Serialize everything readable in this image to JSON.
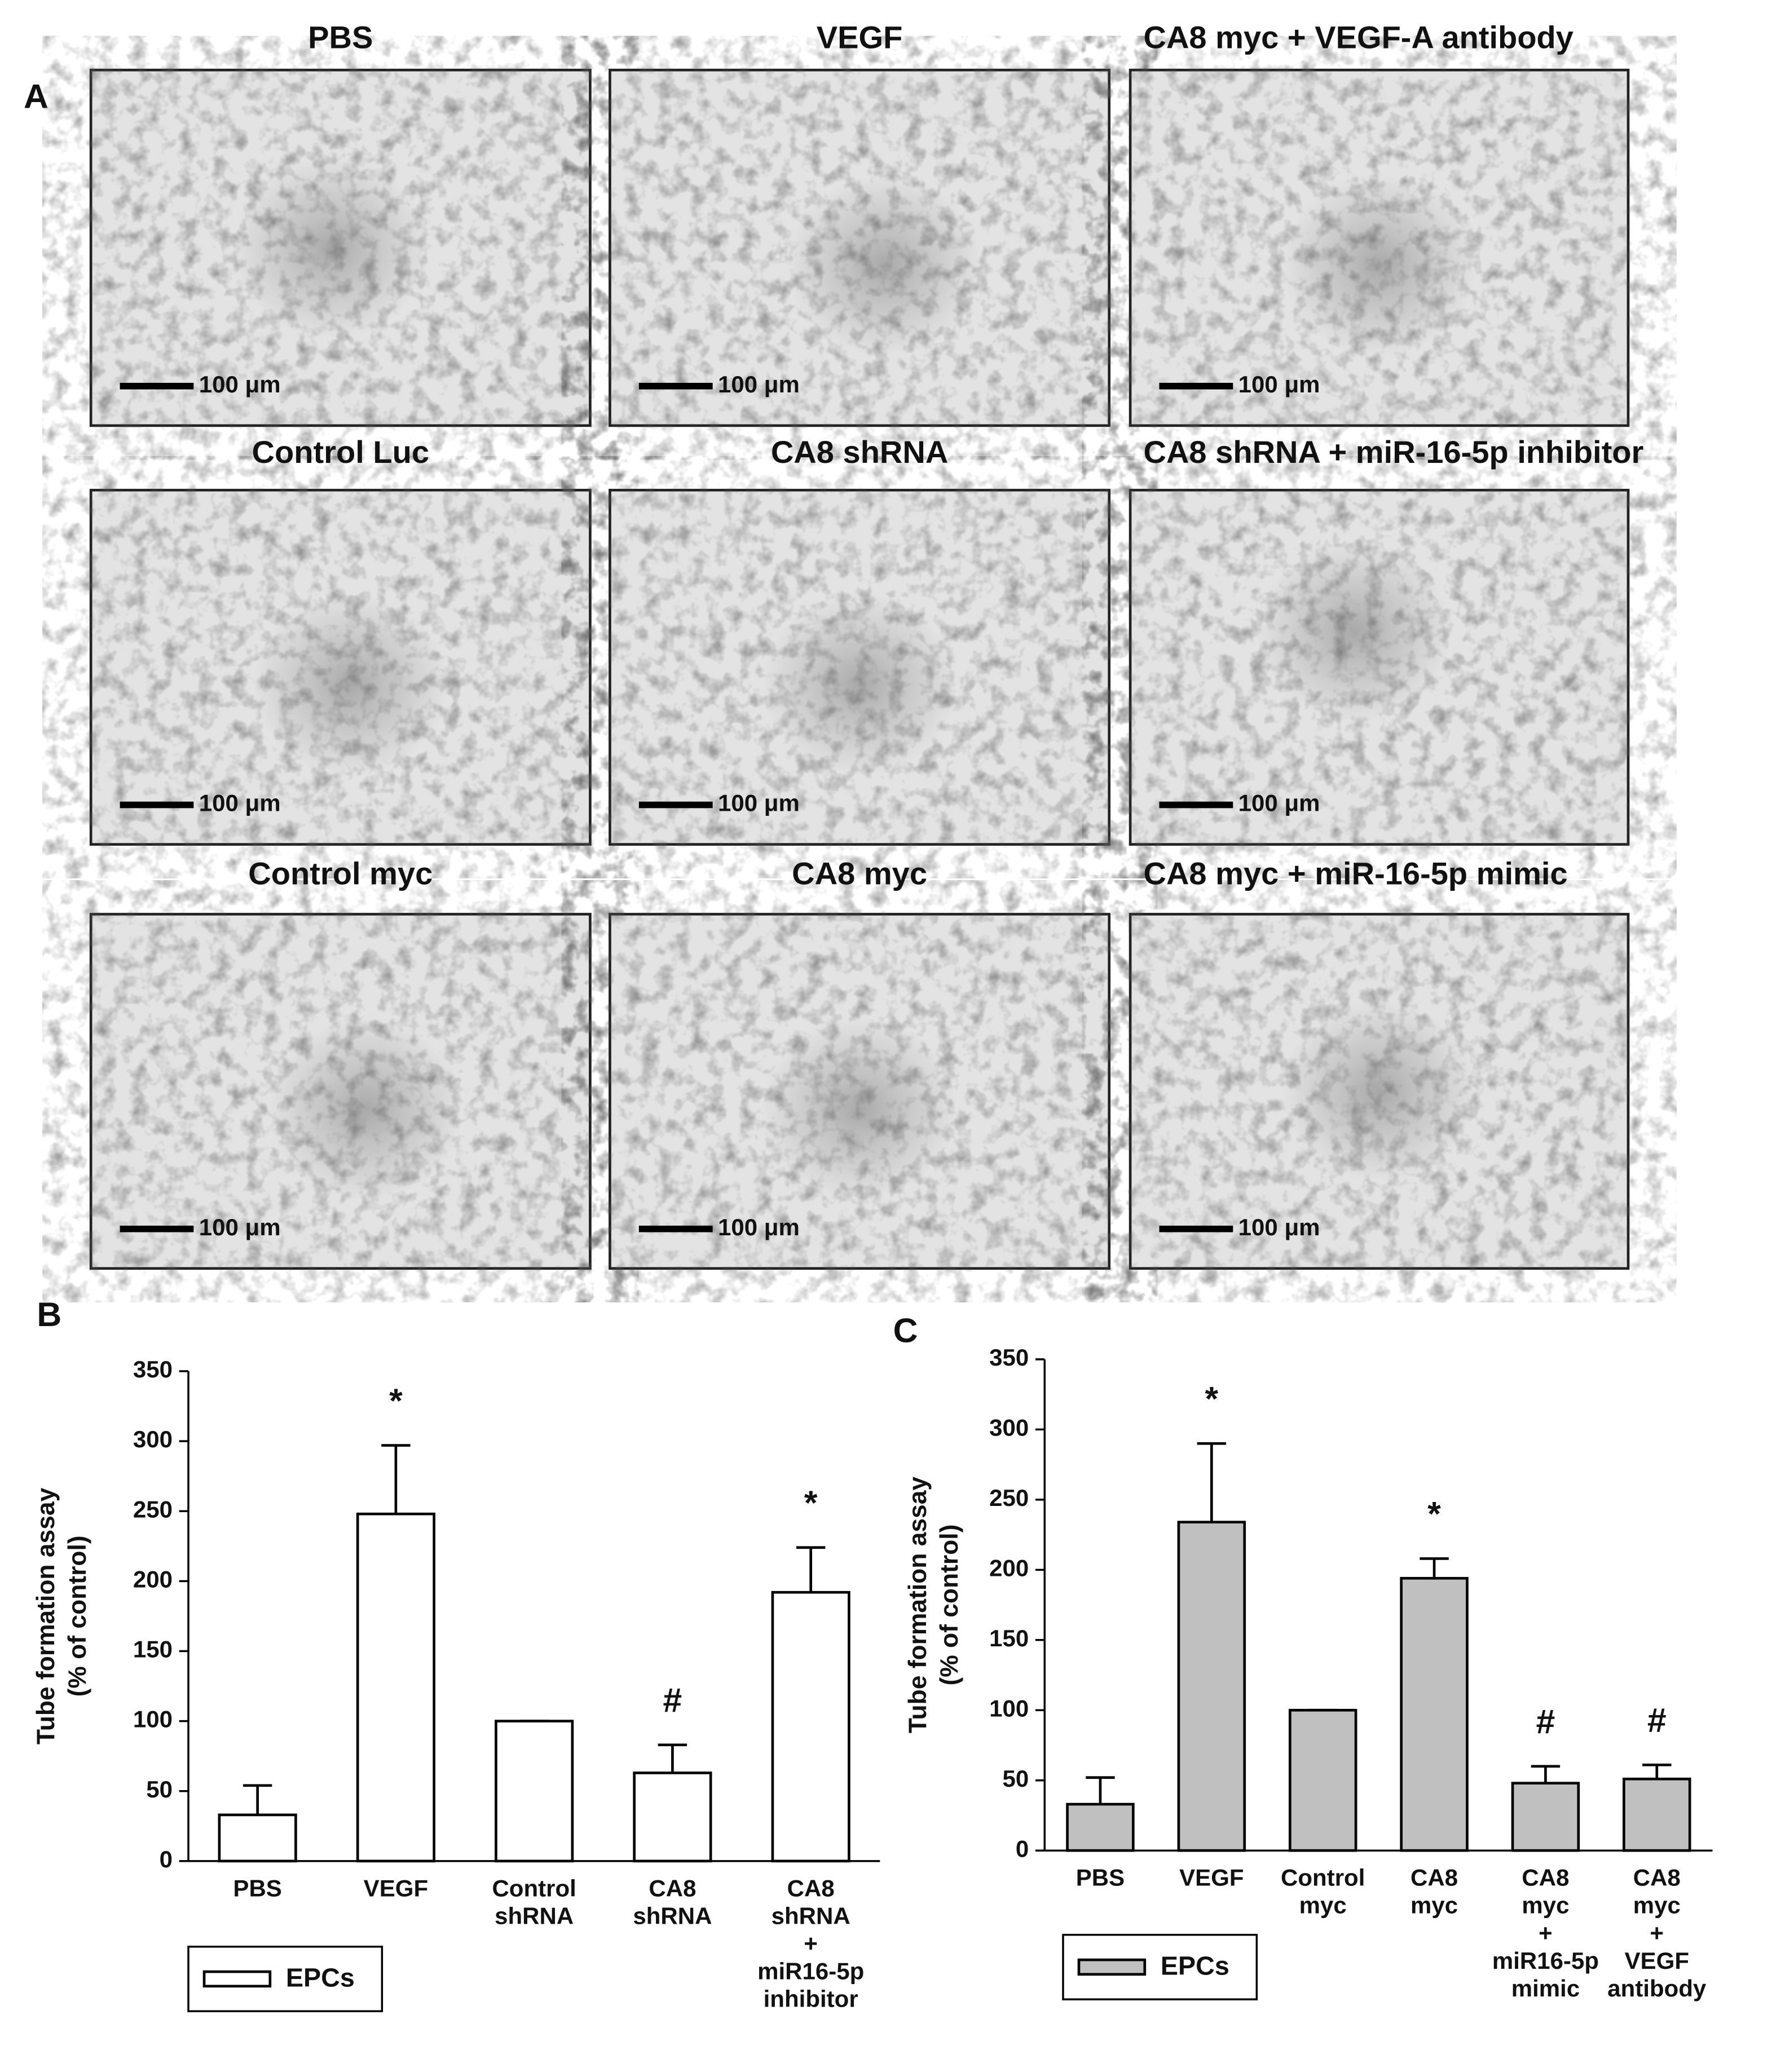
{
  "panel_a": {
    "label": "A",
    "panels": [
      {
        "title": "PBS",
        "scale_bar": "100 μm"
      },
      {
        "title": "VEGF",
        "scale_bar": "100 μm"
      },
      {
        "title": "CA8 myc + VEGF-A antibody",
        "scale_bar": "100 μm"
      },
      {
        "title": "Control Luc",
        "scale_bar": "100 μm"
      },
      {
        "title": "CA8 shRNA",
        "scale_bar": "100 μm"
      },
      {
        "title": "CA8 shRNA + miR-16-5p inhibitor",
        "scale_bar": "100 μm"
      },
      {
        "title": "Control myc",
        "scale_bar": "100 μm"
      },
      {
        "title": "CA8 myc",
        "scale_bar": "100 μm"
      },
      {
        "title": "CA8 myc + miR-16-5p mimic",
        "scale_bar": "100 μm"
      }
    ]
  },
  "chart_data": [
    {
      "type": "bar",
      "panel_label": "B",
      "ylabel": [
        "Tube formation assay",
        "(% of control)"
      ],
      "categories": [
        [
          "PBS"
        ],
        [
          "VEGF"
        ],
        [
          "Control",
          "shRNA"
        ],
        [
          "CA8",
          "shRNA"
        ],
        [
          "CA8",
          "shRNA",
          "+",
          "miR16-5p",
          "inhibitor"
        ]
      ],
      "series": [
        {
          "name": "EPCs",
          "color": "#ffffff",
          "values": [
            33,
            248,
            100,
            63,
            192
          ],
          "errors": [
            21,
            49,
            0,
            20,
            32
          ]
        }
      ],
      "markers": [
        {
          "category": 1,
          "text": "*"
        },
        {
          "category": 3,
          "text": "#"
        },
        {
          "category": 4,
          "text": "*"
        }
      ],
      "ylim": [
        0,
        350
      ],
      "yticks": [
        0,
        50,
        100,
        150,
        200,
        250,
        300,
        350
      ]
    },
    {
      "type": "bar",
      "panel_label": "C",
      "ylabel": [
        "Tube formation assay",
        "(% of control)"
      ],
      "categories": [
        [
          "PBS"
        ],
        [
          "VEGF"
        ],
        [
          "Control",
          "myc"
        ],
        [
          "CA8",
          "myc"
        ],
        [
          "CA8",
          "myc",
          "+",
          "miR16-5p",
          "mimic"
        ],
        [
          "CA8",
          "myc",
          "+",
          "VEGF",
          "antibody"
        ]
      ],
      "series": [
        {
          "name": "EPCs",
          "color": "#c0c0c0",
          "values": [
            33,
            234,
            100,
            194,
            48,
            51
          ],
          "errors": [
            19,
            56,
            0,
            14,
            12,
            10
          ]
        }
      ],
      "markers": [
        {
          "category": 1,
          "text": "*"
        },
        {
          "category": 3,
          "text": "*"
        },
        {
          "category": 4,
          "text": "#"
        },
        {
          "category": 5,
          "text": "#"
        }
      ],
      "ylim": [
        0,
        350
      ],
      "yticks": [
        0,
        50,
        100,
        150,
        200,
        250,
        300,
        350
      ]
    }
  ]
}
